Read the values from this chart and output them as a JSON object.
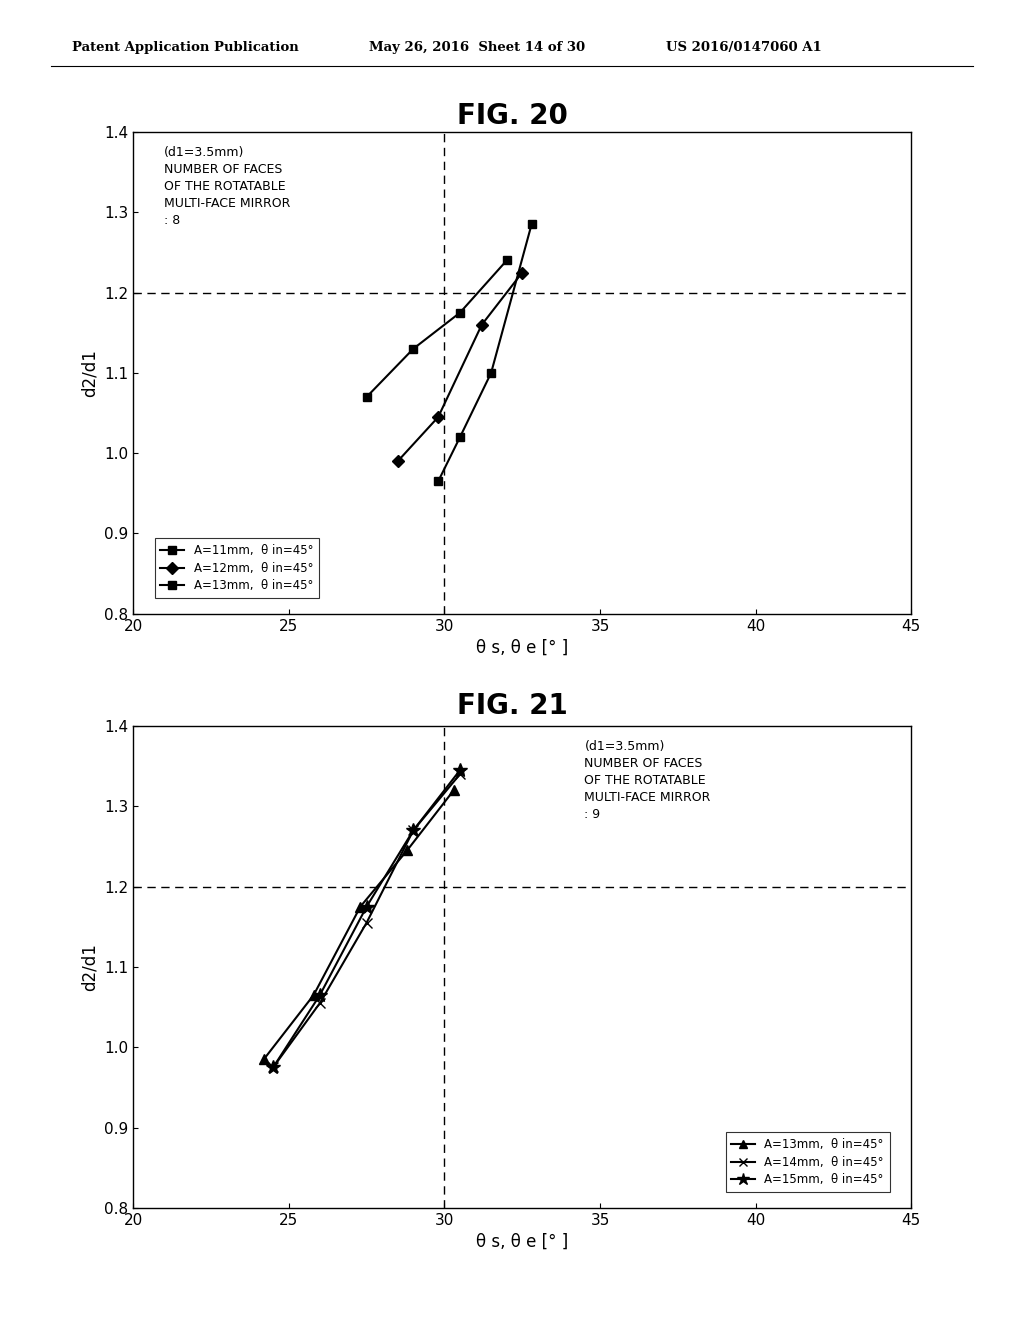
{
  "header_left": "Patent Application Publication",
  "header_mid": "May 26, 2016  Sheet 14 of 30",
  "header_right": "US 2016/0147060 A1",
  "fig20": {
    "title": "FIG. 20",
    "annotation_line1": "(d1=3.5mm)",
    "annotation_line2": "NUMBER OF FACES",
    "annotation_line3": "OF THE ROTATABLE",
    "annotation_line4": "MULTI-FACE MIRROR",
    "annotation_line5": ": 8",
    "xlabel": "θ s, θ e [° ]",
    "ylabel": "d2/d1",
    "xlim": [
      20,
      45
    ],
    "ylim": [
      0.8,
      1.4
    ],
    "xticks": [
      20,
      25,
      30,
      35,
      40,
      45
    ],
    "yticks": [
      0.8,
      0.9,
      1.0,
      1.1,
      1.2,
      1.3,
      1.4
    ],
    "hline_y": 1.2,
    "vline_x": 30,
    "series": [
      {
        "label": "A=11mm,  θ in=45°",
        "marker": "s",
        "x": [
          27.5,
          29.0,
          30.5,
          32.0
        ],
        "y": [
          1.07,
          1.13,
          1.175,
          1.24
        ]
      },
      {
        "label": "A=12mm,  θ in=45°",
        "marker": "D",
        "x": [
          28.5,
          29.8,
          31.2,
          32.5
        ],
        "y": [
          0.99,
          1.045,
          1.16,
          1.225
        ]
      },
      {
        "label": "A=13mm,  θ in=45°",
        "marker": "s",
        "x": [
          29.8,
          30.5,
          31.5,
          32.8
        ],
        "y": [
          0.965,
          1.02,
          1.1,
          1.285
        ]
      }
    ]
  },
  "fig21": {
    "title": "FIG. 21",
    "annotation_line1": "(d1=3.5mm)",
    "annotation_line2": "NUMBER OF FACES",
    "annotation_line3": "OF THE ROTATABLE",
    "annotation_line4": "MULTI-FACE MIRROR",
    "annotation_line5": ": 9",
    "xlabel": "θ s, θ e [° ]",
    "ylabel": "d2/d1",
    "xlim": [
      20,
      45
    ],
    "ylim": [
      0.8,
      1.4
    ],
    "xticks": [
      20,
      25,
      30,
      35,
      40,
      45
    ],
    "yticks": [
      0.8,
      0.9,
      1.0,
      1.1,
      1.2,
      1.3,
      1.4
    ],
    "hline_y": 1.2,
    "vline_x": 30,
    "series": [
      {
        "label": "A=13mm,  θ in=45°",
        "marker": "^",
        "x": [
          24.2,
          25.8,
          27.3,
          28.8,
          30.3
        ],
        "y": [
          0.985,
          1.065,
          1.175,
          1.245,
          1.32
        ]
      },
      {
        "label": "A=14mm,  θ in=45°",
        "marker": "x",
        "x": [
          24.5,
          26.0,
          27.5,
          29.0,
          30.5
        ],
        "y": [
          0.975,
          1.055,
          1.155,
          1.27,
          1.34
        ]
      },
      {
        "label": "A=15mm,  θ in=45°",
        "marker": "*",
        "x": [
          24.5,
          26.0,
          27.5,
          29.0,
          30.5
        ],
        "y": [
          0.975,
          1.065,
          1.175,
          1.27,
          1.345
        ]
      }
    ]
  },
  "bg_color": "#ffffff",
  "line_color": "#000000"
}
